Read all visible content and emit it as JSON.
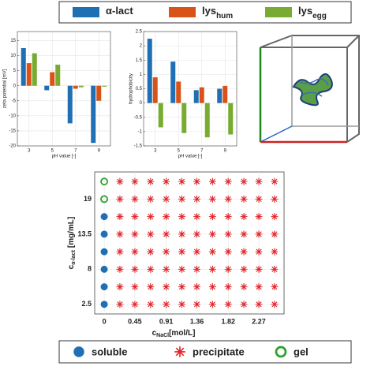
{
  "chart_data": [
    {
      "type": "bar",
      "ylabel": "zeta potential [mV]",
      "xlabel": "pH value [-]",
      "categories": [
        "3",
        "5",
        "7",
        "9"
      ],
      "ylim": [
        -20,
        18
      ],
      "yticks": [
        -20,
        -15,
        -10,
        -5,
        0,
        5,
        10,
        15
      ],
      "grid": true,
      "series": [
        {
          "name": "α-lact",
          "color": "#1f6fb5",
          "values": [
            12.5,
            -1.5,
            -12.5,
            -19
          ]
        },
        {
          "name": "lys",
          "name_sub": "hum",
          "color": "#d95319",
          "values": [
            7.5,
            4.5,
            -1,
            -5
          ]
        },
        {
          "name": "lys",
          "name_sub": "egg",
          "color": "#77ac30",
          "values": [
            10.8,
            7,
            -0.5,
            -0.3
          ]
        }
      ]
    },
    {
      "type": "bar",
      "ylabel": "hydrophobicity",
      "xlabel": "pH value [-]",
      "categories": [
        "3",
        "5",
        "7",
        "9"
      ],
      "ylim": [
        -1.5,
        2.5
      ],
      "yticks": [
        -1.5,
        -1,
        -0.5,
        0,
        0.5,
        1,
        1.5,
        2,
        2.5
      ],
      "grid": true,
      "series": [
        {
          "name": "α-lact",
          "color": "#1f6fb5",
          "values": [
            2.25,
            1.45,
            0.45,
            0.5
          ]
        },
        {
          "name": "lys",
          "name_sub": "hum",
          "color": "#d95319",
          "values": [
            0.9,
            0.75,
            0.55,
            0.6
          ]
        },
        {
          "name": "lys",
          "name_sub": "egg",
          "color": "#77ac30",
          "values": [
            -0.85,
            -1.05,
            -1.2,
            -1.1
          ]
        }
      ]
    },
    {
      "type": "scatter",
      "xlabel": {
        "text": "c",
        "sub": "NaCl",
        "unit": "[mol/L]"
      },
      "ylabel": {
        "text": "c",
        "sub": "α-lact",
        "unit": "[mg/mL]"
      },
      "xlim": [
        -0.14,
        2.64
      ],
      "xticks": [
        0,
        0.45,
        0.91,
        1.36,
        1.82,
        2.27
      ],
      "ylim": [
        1,
        23.25
      ],
      "yticks": [
        2.5,
        8,
        13.5,
        19
      ],
      "grid": true,
      "series": [
        {
          "name": "soluble",
          "color": "#1f6fb5",
          "marker": "filled-circle",
          "x": [
            0,
            0,
            0,
            0,
            0,
            0
          ],
          "y": [
            2.5,
            5.25,
            8,
            10.75,
            13.5,
            16.25
          ]
        },
        {
          "name": "precipitate",
          "color": "#e0262b",
          "marker": "asterisk",
          "x": [
            0.23,
            0.45,
            0.68,
            0.91,
            1.14,
            1.36,
            1.59,
            1.82,
            2.05,
            2.27,
            2.5,
            0.23,
            0.45,
            0.68,
            0.91,
            1.14,
            1.36,
            1.59,
            1.82,
            2.05,
            2.27,
            2.5,
            0.23,
            0.45,
            0.68,
            0.91,
            1.14,
            1.36,
            1.59,
            1.82,
            2.05,
            2.27,
            2.5,
            0.23,
            0.45,
            0.68,
            0.91,
            1.14,
            1.36,
            1.59,
            1.82,
            2.05,
            2.27,
            2.5,
            0.23,
            0.45,
            0.68,
            0.91,
            1.14,
            1.36,
            1.59,
            1.82,
            2.05,
            2.27,
            2.5,
            0.23,
            0.45,
            0.68,
            0.91,
            1.14,
            1.36,
            1.59,
            1.82,
            2.05,
            2.27,
            2.5,
            0.23,
            0.45,
            0.68,
            0.91,
            1.14,
            1.36,
            1.59,
            1.82,
            2.05,
            2.27,
            2.5,
            0.23,
            0.45,
            0.68,
            0.91,
            1.14,
            1.36,
            1.59,
            1.82,
            2.05,
            2.27,
            2.5
          ],
          "y": [
            2.5,
            2.5,
            2.5,
            2.5,
            2.5,
            2.5,
            2.5,
            2.5,
            2.5,
            2.5,
            2.5,
            5.25,
            5.25,
            5.25,
            5.25,
            5.25,
            5.25,
            5.25,
            5.25,
            5.25,
            5.25,
            5.25,
            8,
            8,
            8,
            8,
            8,
            8,
            8,
            8,
            8,
            8,
            8,
            10.75,
            10.75,
            10.75,
            10.75,
            10.75,
            10.75,
            10.75,
            10.75,
            10.75,
            10.75,
            10.75,
            13.5,
            13.5,
            13.5,
            13.5,
            13.5,
            13.5,
            13.5,
            13.5,
            13.5,
            13.5,
            13.5,
            16.25,
            16.25,
            16.25,
            16.25,
            16.25,
            16.25,
            16.25,
            16.25,
            16.25,
            16.25,
            16.25,
            19,
            19,
            19,
            19,
            19,
            19,
            19,
            19,
            19,
            19,
            19,
            21.75,
            21.75,
            21.75,
            21.75,
            21.75,
            21.75,
            21.75,
            21.75,
            21.75,
            21.75,
            21.75
          ]
        },
        {
          "name": "gel",
          "color": "#2ca02c",
          "marker": "open-circle",
          "x": [
            0,
            0
          ],
          "y": [
            19,
            21.75
          ]
        }
      ]
    }
  ]
}
